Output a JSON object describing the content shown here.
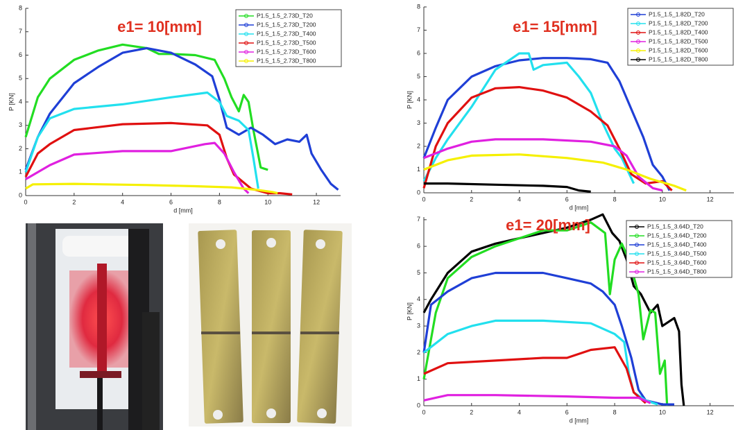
{
  "chart_data": [
    {
      "type": "line",
      "title": "e1= 10[mm]",
      "x_label": "d [mm]",
      "y_label": "P [KN]",
      "xlim": [
        0,
        13
      ],
      "ylim": [
        0,
        8
      ],
      "xticks": [
        0,
        2,
        4,
        6,
        8,
        10,
        12
      ],
      "yticks": [
        0,
        1,
        2,
        3,
        4,
        5,
        6,
        7,
        8
      ],
      "series": [
        {
          "name": "P1.5_1.5_2.73D_T20",
          "color": "#22dd22",
          "x": [
            0,
            0.5,
            1,
            2,
            3,
            4,
            5,
            5.5,
            6,
            7,
            7.8,
            8.2,
            8.5,
            8.8,
            9,
            9.2,
            9.4,
            9.7,
            10
          ],
          "values": [
            2.5,
            4.2,
            5,
            5.8,
            6.2,
            6.45,
            6.3,
            6.05,
            6.05,
            6,
            5.8,
            5,
            4.2,
            3.6,
            4.3,
            4,
            2.8,
            1.2,
            1.1
          ]
        },
        {
          "name": "P1.5_1.5_2.73D_T200",
          "color": "#1f3fd6",
          "x": [
            0,
            0.5,
            1,
            2,
            3,
            4,
            5,
            6,
            7,
            7.7,
            8,
            8.3,
            8.8,
            9.3,
            9.8,
            10.3,
            10.8,
            11.3,
            11.6,
            11.8,
            12.2,
            12.6,
            12.9
          ],
          "values": [
            1.1,
            2.5,
            3.5,
            4.8,
            5.5,
            6.1,
            6.3,
            6.1,
            5.6,
            5.1,
            4.1,
            2.9,
            2.6,
            2.9,
            2.6,
            2.2,
            2.4,
            2.3,
            2.6,
            1.8,
            1.1,
            0.5,
            0.25
          ]
        },
        {
          "name": "P1.5_1.5_2.73D_T400",
          "color": "#22e0ee",
          "x": [
            0,
            0.5,
            1,
            2,
            4,
            6,
            7.5,
            8,
            8.3,
            8.8,
            9.2,
            9.4,
            9.6
          ],
          "values": [
            1,
            2.5,
            3.3,
            3.7,
            3.9,
            4.2,
            4.4,
            4,
            3.4,
            3.2,
            2.8,
            1.6,
            0.3
          ]
        },
        {
          "name": "P1.5_1.5_2.73D_T500",
          "color": "#e01010",
          "x": [
            0,
            0.5,
            1,
            2,
            4,
            6,
            7.5,
            8,
            8.3,
            8.6,
            9.3,
            10,
            10.5,
            11
          ],
          "values": [
            0.8,
            1.8,
            2.2,
            2.8,
            3.05,
            3.1,
            3,
            2.6,
            1.6,
            0.9,
            0.3,
            0.1,
            0.1,
            0.05
          ]
        },
        {
          "name": "P1.5_1.5_2.73D_T600",
          "color": "#e020e0",
          "x": [
            0,
            0.5,
            1,
            2,
            4,
            6,
            7.4,
            7.8,
            8.2,
            8.6,
            9,
            9.2
          ],
          "values": [
            0.7,
            1,
            1.3,
            1.75,
            1.9,
            1.9,
            2.2,
            2.25,
            1.8,
            1,
            0.3,
            0.1
          ]
        },
        {
          "name": "P1.5_1.5_2.73D_T800",
          "color": "#f5f000",
          "x": [
            0,
            0.3,
            2,
            5,
            7,
            8.5,
            9.5,
            10.2,
            10.4
          ],
          "values": [
            0.3,
            0.48,
            0.5,
            0.45,
            0.4,
            0.35,
            0.25,
            0.15,
            0.1
          ]
        }
      ]
    },
    {
      "type": "line",
      "title": "e1= 15[mm]",
      "x_label": "d [mm]",
      "y_label": "P [KN]",
      "xlim": [
        0,
        13
      ],
      "ylim": [
        0,
        8
      ],
      "xticks": [
        0,
        2,
        4,
        6,
        8,
        10,
        12
      ],
      "yticks": [
        0,
        1,
        2,
        3,
        4,
        5,
        6,
        7,
        8
      ],
      "series": [
        {
          "name": "P1.5_1.5_1.82D_T20",
          "color": "#1f3fd6",
          "x": [
            0,
            0.5,
            1,
            2,
            3,
            4,
            5,
            6,
            7,
            7.7,
            8.2,
            8.7,
            9.2,
            9.6,
            10,
            10.3
          ],
          "values": [
            1.5,
            2.8,
            4,
            5,
            5.45,
            5.7,
            5.8,
            5.8,
            5.75,
            5.6,
            4.8,
            3.6,
            2.4,
            1.2,
            0.7,
            0.1
          ]
        },
        {
          "name": "P1.5_1.5_1.82D_T200",
          "color": "#22e0ee",
          "x": [
            0,
            0.5,
            1,
            2,
            3,
            4,
            4.4,
            4.6,
            5,
            6,
            6.5,
            7,
            7.5,
            8,
            8.3,
            8.8
          ],
          "values": [
            0.5,
            1.5,
            2.3,
            3.7,
            5.3,
            6,
            6,
            5.3,
            5.5,
            5.6,
            5,
            4.3,
            3,
            1.9,
            1.5,
            0.4
          ]
        },
        {
          "name": "P1.5_1.5_1.82D_T400",
          "color": "#e01010",
          "x": [
            0,
            0.5,
            1,
            2,
            3,
            4,
            5,
            6,
            7,
            7.7,
            8.2,
            8.7,
            9.3,
            10,
            10.4
          ],
          "values": [
            0.2,
            2,
            3,
            4.1,
            4.5,
            4.55,
            4.4,
            4.1,
            3.5,
            2.9,
            1.9,
            0.8,
            0.4,
            0.5,
            0.1
          ]
        },
        {
          "name": "P1.5_1.5_1.82D_T500",
          "color": "#e020e0",
          "x": [
            0,
            1,
            2,
            3,
            5,
            7,
            8,
            8.5,
            9,
            9.6,
            10
          ],
          "values": [
            1.5,
            1.9,
            2.2,
            2.3,
            2.3,
            2.2,
            2,
            1.6,
            0.7,
            0.2,
            0.1
          ]
        },
        {
          "name": "P1.5_1.5_1.82D_T600",
          "color": "#f5f000",
          "x": [
            0,
            1,
            2,
            4,
            6,
            7.5,
            8.5,
            9.5,
            10.5,
            11
          ],
          "values": [
            1,
            1.4,
            1.6,
            1.65,
            1.5,
            1.3,
            1,
            0.6,
            0.3,
            0.1
          ]
        },
        {
          "name": "P1.5_1.5_1.82D_T800",
          "color": "#000000",
          "x": [
            0,
            1,
            3,
            5,
            6,
            6.5,
            7
          ],
          "values": [
            0.4,
            0.4,
            0.35,
            0.3,
            0.25,
            0.1,
            0.05
          ]
        }
      ]
    },
    {
      "type": "line",
      "title": "e1= 20[mm]",
      "x_label": "d [mm]",
      "y_label": "P [KN]",
      "xlim": [
        0,
        13
      ],
      "ylim": [
        0,
        7.1
      ],
      "xticks": [
        0,
        2,
        4,
        6,
        8,
        10,
        12
      ],
      "yticks": [
        0,
        1,
        2,
        3,
        4,
        5,
        6,
        7
      ],
      "series": [
        {
          "name": "P1.5_1.5_3.64D_T20",
          "color": "#000000",
          "x": [
            0,
            0.3,
            1,
            2,
            3,
            4,
            5,
            6,
            7,
            7.5,
            7.9,
            8.2,
            8.5,
            8.8,
            9.1,
            9.5,
            9.8,
            10,
            10.5,
            10.7,
            10.8,
            10.9
          ],
          "values": [
            3.5,
            4,
            5,
            5.8,
            6.1,
            6.3,
            6.5,
            6.7,
            7,
            7.2,
            6.5,
            6.2,
            5.5,
            4.5,
            4.2,
            3.5,
            3.8,
            3,
            3.3,
            2.8,
            0.8,
            0
          ]
        },
        {
          "name": "P1.5_1.5_3.64D_T200",
          "color": "#22dd22",
          "x": [
            0,
            0.5,
            1,
            2,
            3,
            4,
            5,
            6,
            7,
            7.6,
            7.8,
            8,
            8.3,
            8.6,
            9,
            9.2,
            9.5,
            9.7,
            9.9,
            10.1,
            10.2
          ],
          "values": [
            1,
            3.5,
            4.8,
            5.6,
            6,
            6.3,
            6.6,
            6.6,
            6.9,
            6.5,
            4.2,
            5.5,
            6.1,
            5.5,
            4.2,
            2.5,
            3.6,
            3.5,
            1.2,
            1.7,
            0
          ]
        },
        {
          "name": "P1.5_1.5_3.64D_T400",
          "color": "#1f3fd6",
          "x": [
            0,
            0.3,
            1,
            2,
            3,
            5,
            6,
            7,
            7.5,
            8,
            8.3,
            8.7,
            9,
            9.3,
            10,
            10.5
          ],
          "values": [
            2,
            3.8,
            4.3,
            4.8,
            5,
            5,
            4.8,
            4.6,
            4.3,
            3.8,
            3,
            1.8,
            0.6,
            0.2,
            0.05,
            0.05
          ]
        },
        {
          "name": "P1.5_1.5_3.64D_T500",
          "color": "#22e0ee",
          "x": [
            0,
            1,
            2,
            3,
            5,
            7,
            8,
            8.4,
            8.6,
            8.8,
            9.3,
            9.8
          ],
          "values": [
            2,
            2.7,
            3,
            3.2,
            3.2,
            3.1,
            2.7,
            2.4,
            1.2,
            0.5,
            0.2,
            0.05
          ]
        },
        {
          "name": "P1.5_1.5_3.64D_T600",
          "color": "#e01010",
          "x": [
            0,
            1,
            3,
            5,
            6,
            7,
            8,
            8.5,
            8.8,
            9.3
          ],
          "values": [
            1.2,
            1.6,
            1.7,
            1.8,
            1.8,
            2.1,
            2.2,
            1.4,
            0.5,
            0.1
          ]
        },
        {
          "name": "P1.5_1.5_3.64D_T800",
          "color": "#e020e0",
          "x": [
            0,
            1,
            3,
            6,
            8,
            9,
            9.5
          ],
          "values": [
            0.2,
            0.4,
            0.4,
            0.35,
            0.3,
            0.3,
            0.1
          ]
        }
      ]
    }
  ]
}
